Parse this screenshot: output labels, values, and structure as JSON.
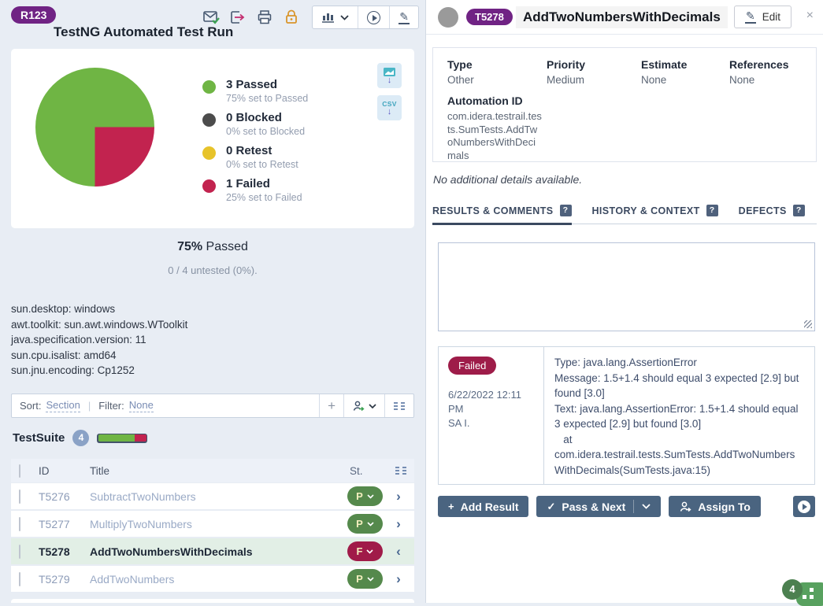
{
  "left_panel": {
    "run_badge": "R123",
    "title": "TestNG Automated Test Run",
    "toolbar_icon_names": [
      "email-report-icon",
      "export-run-icon",
      "print-icon",
      "lock-icon",
      "charts-menu-icon",
      "rerun-icon",
      "edit-run-icon"
    ],
    "export_buttons": {
      "chart_image": "chart-image-download-icon",
      "csv_label": "CSV"
    },
    "summary": {
      "percent": "75%",
      "word": "Passed",
      "untested": "0 / 4 untested (0%)."
    },
    "sysinfo": [
      "sun.desktop: windows",
      "awt.toolkit: sun.awt.windows.WToolkit",
      "java.specification.version: 11",
      "sun.cpu.isalist: amd64",
      "sun.jnu.encoding: Cp1252"
    ],
    "sortbar": {
      "sort_label": "Sort:",
      "sort_value": "Section",
      "filter_label": "Filter:",
      "filter_value": "None"
    },
    "suite": {
      "name": "TestSuite",
      "count": "4"
    },
    "table": {
      "headers": {
        "id": "ID",
        "title": "Title",
        "status": "St."
      },
      "rows": [
        {
          "id": "T5276",
          "title": "SubtractTwoNumbers",
          "status": "P",
          "status_color": "#55894c",
          "selected": false,
          "arrow": "›"
        },
        {
          "id": "T5277",
          "title": "MultiplyTwoNumbers",
          "status": "P",
          "status_color": "#55894c",
          "selected": false,
          "arrow": "›"
        },
        {
          "id": "T5278",
          "title": "AddTwoNumbersWithDecimals",
          "status": "F",
          "status_color": "#a01b49",
          "selected": true,
          "arrow": "‹"
        },
        {
          "id": "T5279",
          "title": "AddTwoNumbers",
          "status": "P",
          "status_color": "#55894c",
          "selected": false,
          "arrow": "›"
        }
      ]
    }
  },
  "right_panel": {
    "case_badge": "T5278",
    "title": "AddTwoNumbersWithDecimals",
    "edit_label": "Edit",
    "close_glyph": "×",
    "fields": [
      {
        "label": "Type",
        "value": "Other"
      },
      {
        "label": "Priority",
        "value": "Medium"
      },
      {
        "label": "Estimate",
        "value": "None"
      },
      {
        "label": "References",
        "value": "None"
      }
    ],
    "automation": {
      "label": "Automation ID",
      "value": "com.idera.testrail.tests.SumTests.AddTwoNumbersWithDecimals"
    },
    "no_details": "No additional details available.",
    "tabs": [
      {
        "label": "RESULTS & COMMENTS",
        "help": "?",
        "active": true
      },
      {
        "label": "HISTORY & CONTEXT",
        "help": "?",
        "active": false
      },
      {
        "label": "DEFECTS",
        "help": "?",
        "active": false
      }
    ],
    "result": {
      "status": "Failed",
      "datetime": "6/22/2022 12:11 PM",
      "author": "SA I.",
      "lines": [
        "Type: java.lang.AssertionError",
        "Message: 1.5+1.4 should equal 3 expected [2.9] but found [3.0]",
        "Text: java.lang.AssertionError: 1.5+1.4 should equal 3 expected [2.9] but found [3.0]",
        "   at com.idera.testrail.tests.SumTests.AddTwoNumbersWithDecimals(SumTests.java:15)"
      ]
    },
    "buttons": {
      "add_result": "Add Result",
      "pass_next": "Pass & Next",
      "assign_to": "Assign To"
    },
    "chat_badge": "4"
  },
  "chart_data": {
    "type": "pie",
    "title": "TestNG Automated Test Run status distribution",
    "labels": [
      "Passed",
      "Blocked",
      "Retest",
      "Failed"
    ],
    "values": [
      3,
      0,
      0,
      1
    ],
    "percentages": [
      75,
      0,
      0,
      25
    ],
    "colors": [
      "#6fb544",
      "#4c4c4c",
      "#e7c32a",
      "#c2234f"
    ],
    "legend": [
      {
        "label": "3 Passed",
        "sub": "75% set to Passed",
        "color_index": 0
      },
      {
        "label": "0 Blocked",
        "sub": "0% set to Blocked",
        "color_index": 1
      },
      {
        "label": "0 Retest",
        "sub": "0% set to Retest",
        "color_index": 2
      },
      {
        "label": "1 Failed",
        "sub": "25% set to Failed",
        "color_index": 3
      }
    ],
    "pie_start_deg": 90,
    "pie_segments": [
      {
        "color_index": 3,
        "pct": 25
      },
      {
        "color_index": 0,
        "pct": 75
      }
    ],
    "legend_position": "right"
  }
}
